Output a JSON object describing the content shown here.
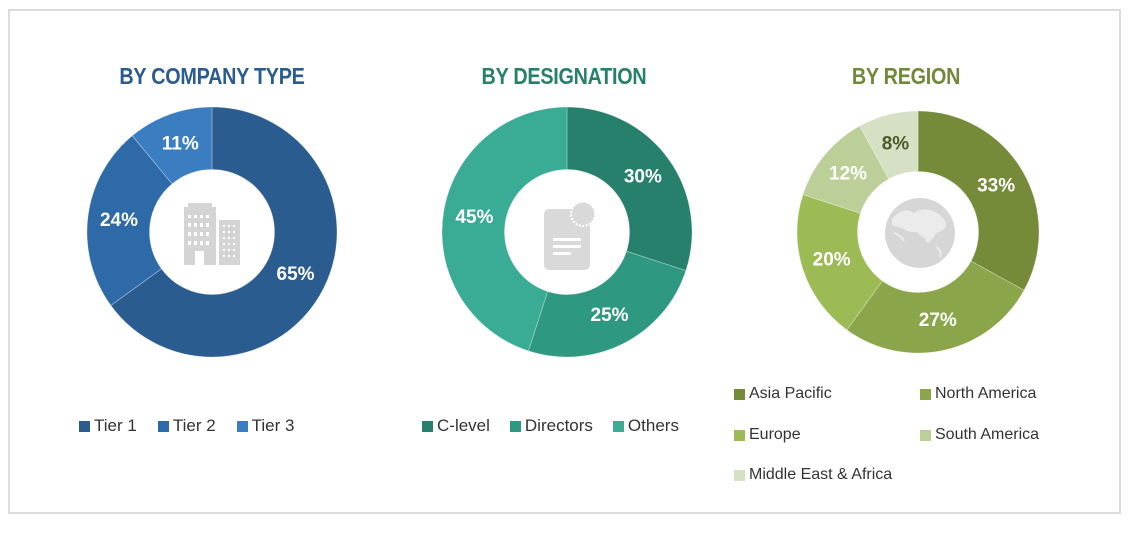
{
  "chart_data": [
    {
      "type": "pie",
      "subtype": "donut",
      "title": "BY COMPANY TYPE",
      "title_color": "#2b5c8f",
      "categories": [
        "Tier 1",
        "Tier 2",
        "Tier 3"
      ],
      "values": [
        65,
        24,
        11
      ],
      "labels": [
        "65%",
        "24%",
        "11%"
      ],
      "colors": [
        "#2b5c8f",
        "#2f6aa8",
        "#3a7dc0"
      ],
      "center_icon": "buildings-icon",
      "legend_position": "bottom"
    },
    {
      "type": "pie",
      "subtype": "donut",
      "title": "BY DESIGNATION",
      "title_color": "#27806b",
      "categories": [
        "C-level",
        "Directors",
        "Others"
      ],
      "values": [
        30,
        25,
        45
      ],
      "labels": [
        "30%",
        "25%",
        "45%"
      ],
      "colors": [
        "#27806b",
        "#2f9880",
        "#3aab94"
      ],
      "center_icon": "document-badge-icon",
      "legend_position": "bottom"
    },
    {
      "type": "pie",
      "subtype": "donut",
      "title": "BY REGION",
      "title_color": "#708a3a",
      "categories": [
        "Asia Pacific",
        "North America",
        "Europe",
        "South America",
        "Middle East & Africa"
      ],
      "values": [
        33,
        27,
        20,
        12,
        8
      ],
      "labels": [
        "33%",
        "27%",
        "20%",
        "12%",
        "8%"
      ],
      "colors": [
        "#768b3a",
        "#8aa54a",
        "#9dbb55",
        "#bccf98",
        "#d6e0c4"
      ],
      "label_colors": [
        "#ffffff",
        "#ffffff",
        "#ffffff",
        "#ffffff",
        "#4a5a2a"
      ],
      "center_icon": "globe-icon",
      "legend_position": "bottom"
    }
  ]
}
